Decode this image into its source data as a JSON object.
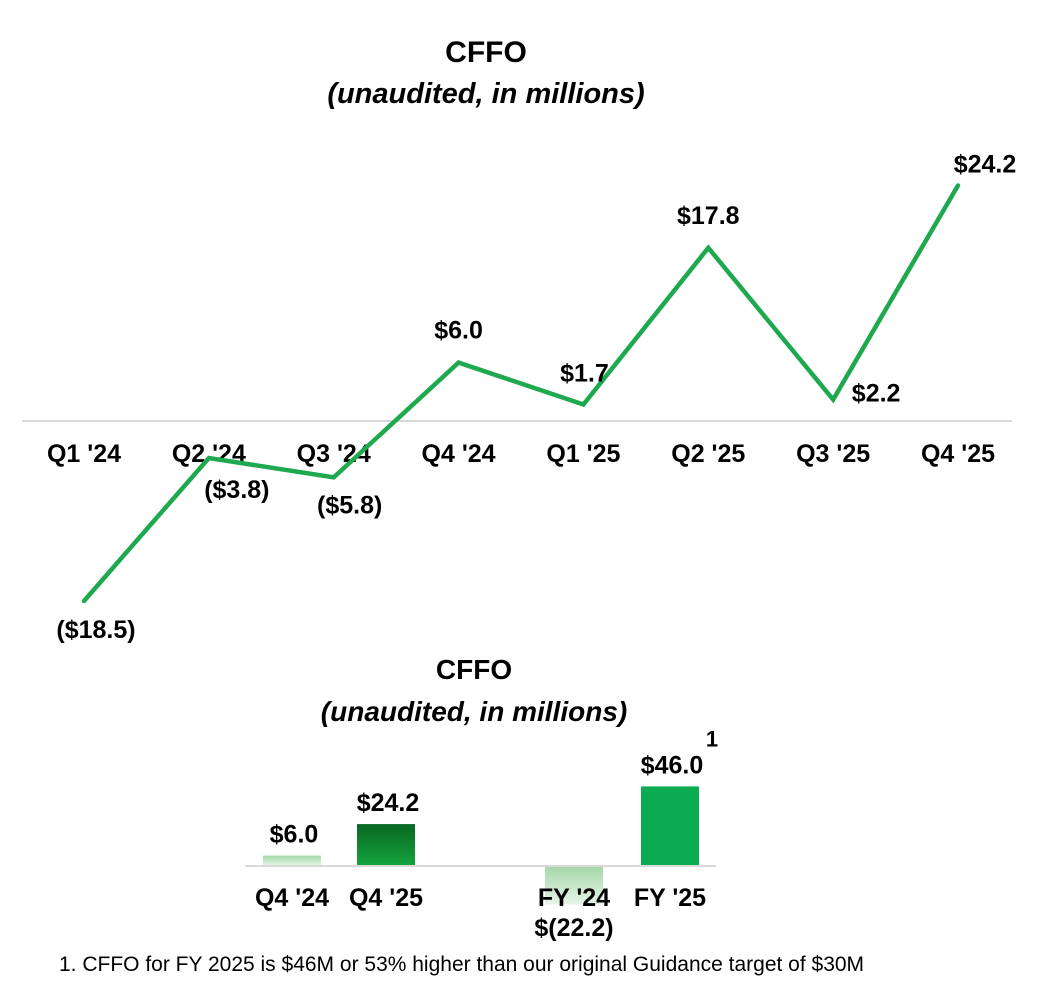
{
  "colors": {
    "line_green": "#1ea94f",
    "axis_gray": "#d9d9d9",
    "bar_dark_green_top": "#086722",
    "bar_dark_green_bottom": "#15a53e",
    "bar_light_green_top": "#a5d7a9",
    "bar_light_green_bottom": "#e6f4e7",
    "bar_solid_green": "#0bab51",
    "text_black": "#000000"
  },
  "chart_data": [
    {
      "type": "line",
      "title": "CFFO",
      "subtitle": "(unaudited, in millions)",
      "categories": [
        "Q1 '24",
        "Q2 '24",
        "Q3 '24",
        "Q4 '24",
        "Q1 '25",
        "Q2 '25",
        "Q3 '25",
        "Q4 '25"
      ],
      "values": [
        -18.5,
        -3.8,
        -5.8,
        6.0,
        1.7,
        17.8,
        2.2,
        24.2
      ],
      "labels": [
        "($18.5)",
        "($3.8)",
        "($5.8)",
        "$6.0",
        "$1.7",
        "$17.8",
        "$2.2",
        "$24.2"
      ],
      "label_positions": [
        "below",
        "below",
        "below",
        "above",
        "above",
        "above",
        "right",
        "above"
      ],
      "line_color": "#1ea94f",
      "grid": false,
      "zero_axis": true,
      "ylim": [
        -25,
        30
      ],
      "legend": "none"
    },
    {
      "type": "bar",
      "title": "CFFO",
      "subtitle": "(unaudited, in millions)",
      "categories": [
        "Q4 '24",
        "Q4 '25",
        "FY '24",
        "FY '25"
      ],
      "values": [
        6.0,
        24.2,
        -22.2,
        46.0
      ],
      "labels": [
        "$6.0",
        "$24.2",
        "$(22.2)",
        "$46.0"
      ],
      "bar_styles": [
        "light-gradient",
        "dark-gradient",
        "light-gradient",
        "solid"
      ],
      "superscript": {
        "bar_index": 3,
        "text": "1"
      },
      "grid": false,
      "zero_axis": true,
      "ylim": [
        -25,
        50
      ],
      "legend": "none"
    }
  ],
  "footnote": "1. CFFO for FY 2025 is $46M or 53% higher than our original Guidance target of $30M"
}
